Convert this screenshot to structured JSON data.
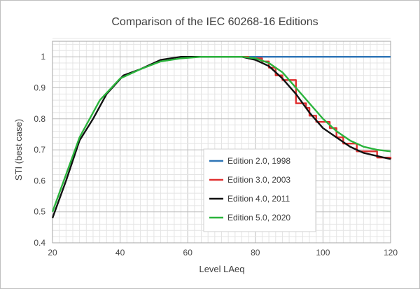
{
  "chart_data": {
    "type": "line",
    "title": "Comparison of the IEC 60268-16 Editions",
    "xlabel": "Level LAeq",
    "ylabel": "STI (best case)",
    "xlim": [
      20,
      120
    ],
    "ylim": [
      0.4,
      1.05
    ],
    "xticks": [
      20,
      40,
      60,
      80,
      100,
      120
    ],
    "yticks": [
      0.4,
      0.5,
      0.6,
      0.7,
      0.8,
      0.9,
      1
    ],
    "grid": true,
    "legend_position": "bottom-right",
    "series": [
      {
        "name": "Edition 2.0, 1998",
        "color": "#2e75b6",
        "step": false,
        "points": [
          [
            78,
            1.0
          ],
          [
            120,
            1.0
          ]
        ]
      },
      {
        "name": "Edition 3.0, 2003",
        "color": "#e03030",
        "step": true,
        "points": [
          [
            76,
            1.0
          ],
          [
            78,
            0.995
          ],
          [
            82,
            0.985
          ],
          [
            84,
            0.965
          ],
          [
            86,
            0.94
          ],
          [
            88,
            0.925
          ],
          [
            92,
            0.85
          ],
          [
            95,
            0.835
          ],
          [
            96,
            0.81
          ],
          [
            98,
            0.79
          ],
          [
            102,
            0.77
          ],
          [
            104,
            0.74
          ],
          [
            106,
            0.72
          ],
          [
            110,
            0.695
          ],
          [
            116,
            0.675
          ],
          [
            120,
            0.67
          ]
        ]
      },
      {
        "name": "Edition 4.0, 2011",
        "color": "#111111",
        "step": false,
        "points": [
          [
            20,
            0.48
          ],
          [
            24,
            0.6
          ],
          [
            28,
            0.73
          ],
          [
            32,
            0.8
          ],
          [
            36,
            0.88
          ],
          [
            41,
            0.94
          ],
          [
            46,
            0.96
          ],
          [
            52,
            0.99
          ],
          [
            58,
            1.0
          ],
          [
            64,
            1.0
          ],
          [
            70,
            1.0
          ],
          [
            76,
            1.0
          ],
          [
            80,
            0.99
          ],
          [
            84,
            0.97
          ],
          [
            88,
            0.93
          ],
          [
            92,
            0.88
          ],
          [
            96,
            0.82
          ],
          [
            100,
            0.77
          ],
          [
            104,
            0.74
          ],
          [
            108,
            0.71
          ],
          [
            112,
            0.69
          ],
          [
            116,
            0.68
          ],
          [
            120,
            0.67
          ]
        ]
      },
      {
        "name": "Edition 5.0, 2020",
        "color": "#2ab43c",
        "step": false,
        "points": [
          [
            20,
            0.5
          ],
          [
            24,
            0.62
          ],
          [
            28,
            0.74
          ],
          [
            34,
            0.86
          ],
          [
            40,
            0.93
          ],
          [
            46,
            0.96
          ],
          [
            52,
            0.985
          ],
          [
            58,
            0.995
          ],
          [
            64,
            1.0
          ],
          [
            70,
            1.0
          ],
          [
            76,
            1.0
          ],
          [
            80,
            0.995
          ],
          [
            84,
            0.98
          ],
          [
            88,
            0.95
          ],
          [
            92,
            0.9
          ],
          [
            96,
            0.85
          ],
          [
            100,
            0.8
          ],
          [
            104,
            0.76
          ],
          [
            108,
            0.73
          ],
          [
            112,
            0.71
          ],
          [
            116,
            0.7
          ],
          [
            120,
            0.695
          ]
        ]
      }
    ]
  }
}
